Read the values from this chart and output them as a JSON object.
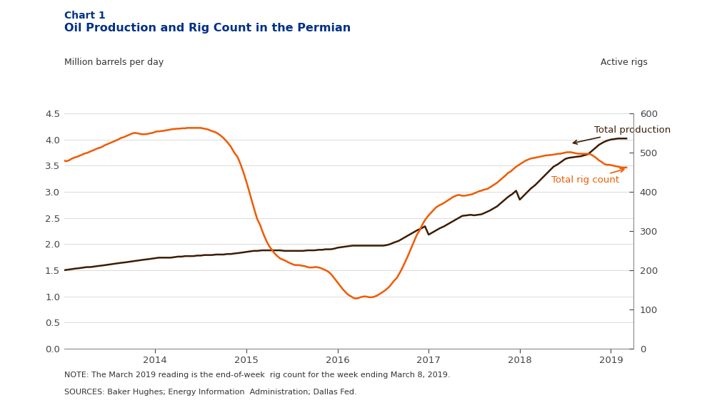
{
  "title_line1": "Chart 1",
  "title_line2": "Oil Production and Rig Count in the Permian",
  "ylabel_left": "Million barrels per day",
  "ylabel_right": "Active rigs",
  "note": "NOTE: The March 2019 reading is the end-of-week  rig count for the week ending March 8, 2019.",
  "sources": "SOURCES: Baker Hughes; Energy Information  Administration; Dallas Fed.",
  "ylim_left": [
    0.0,
    4.5
  ],
  "ylim_right": [
    0,
    600
  ],
  "yticks_left": [
    0.0,
    0.5,
    1.0,
    1.5,
    2.0,
    2.5,
    3.0,
    3.5,
    4.0,
    4.5
  ],
  "yticks_right": [
    0,
    100,
    200,
    300,
    400,
    500,
    600
  ],
  "production_color": "#3d1c02",
  "rig_color": "#f05a00",
  "title_color": "#003087",
  "background_color": "#ffffff",
  "annotation_production": "Total production",
  "annotation_rig": "Total rig count",
  "production_data": [
    [
      2013.0,
      1.5
    ],
    [
      2013.04,
      1.51
    ],
    [
      2013.08,
      1.52
    ],
    [
      2013.12,
      1.53
    ],
    [
      2013.17,
      1.54
    ],
    [
      2013.21,
      1.55
    ],
    [
      2013.25,
      1.56
    ],
    [
      2013.29,
      1.56
    ],
    [
      2013.33,
      1.57
    ],
    [
      2013.37,
      1.58
    ],
    [
      2013.42,
      1.59
    ],
    [
      2013.46,
      1.6
    ],
    [
      2013.5,
      1.61
    ],
    [
      2013.54,
      1.62
    ],
    [
      2013.58,
      1.63
    ],
    [
      2013.62,
      1.64
    ],
    [
      2013.67,
      1.65
    ],
    [
      2013.71,
      1.66
    ],
    [
      2013.75,
      1.67
    ],
    [
      2013.79,
      1.68
    ],
    [
      2013.83,
      1.69
    ],
    [
      2013.87,
      1.7
    ],
    [
      2013.92,
      1.71
    ],
    [
      2013.96,
      1.72
    ],
    [
      2014.0,
      1.73
    ],
    [
      2014.04,
      1.74
    ],
    [
      2014.08,
      1.74
    ],
    [
      2014.12,
      1.74
    ],
    [
      2014.17,
      1.74
    ],
    [
      2014.21,
      1.75
    ],
    [
      2014.25,
      1.76
    ],
    [
      2014.29,
      1.76
    ],
    [
      2014.33,
      1.77
    ],
    [
      2014.37,
      1.77
    ],
    [
      2014.42,
      1.77
    ],
    [
      2014.46,
      1.78
    ],
    [
      2014.5,
      1.78
    ],
    [
      2014.54,
      1.79
    ],
    [
      2014.58,
      1.79
    ],
    [
      2014.62,
      1.79
    ],
    [
      2014.67,
      1.8
    ],
    [
      2014.71,
      1.8
    ],
    [
      2014.75,
      1.8
    ],
    [
      2014.79,
      1.81
    ],
    [
      2014.83,
      1.81
    ],
    [
      2014.87,
      1.82
    ],
    [
      2014.92,
      1.83
    ],
    [
      2014.96,
      1.84
    ],
    [
      2015.0,
      1.85
    ],
    [
      2015.04,
      1.86
    ],
    [
      2015.08,
      1.87
    ],
    [
      2015.12,
      1.87
    ],
    [
      2015.17,
      1.88
    ],
    [
      2015.21,
      1.88
    ],
    [
      2015.25,
      1.88
    ],
    [
      2015.29,
      1.88
    ],
    [
      2015.33,
      1.88
    ],
    [
      2015.37,
      1.88
    ],
    [
      2015.42,
      1.87
    ],
    [
      2015.46,
      1.87
    ],
    [
      2015.5,
      1.87
    ],
    [
      2015.54,
      1.87
    ],
    [
      2015.58,
      1.87
    ],
    [
      2015.62,
      1.87
    ],
    [
      2015.67,
      1.88
    ],
    [
      2015.71,
      1.88
    ],
    [
      2015.75,
      1.88
    ],
    [
      2015.79,
      1.89
    ],
    [
      2015.83,
      1.89
    ],
    [
      2015.87,
      1.9
    ],
    [
      2015.92,
      1.9
    ],
    [
      2015.96,
      1.91
    ],
    [
      2016.0,
      1.93
    ],
    [
      2016.04,
      1.94
    ],
    [
      2016.08,
      1.95
    ],
    [
      2016.12,
      1.96
    ],
    [
      2016.17,
      1.97
    ],
    [
      2016.21,
      1.97
    ],
    [
      2016.25,
      1.97
    ],
    [
      2016.29,
      1.97
    ],
    [
      2016.33,
      1.97
    ],
    [
      2016.37,
      1.97
    ],
    [
      2016.42,
      1.97
    ],
    [
      2016.46,
      1.97
    ],
    [
      2016.5,
      1.97
    ],
    [
      2016.54,
      1.98
    ],
    [
      2016.58,
      2.0
    ],
    [
      2016.62,
      2.03
    ],
    [
      2016.67,
      2.06
    ],
    [
      2016.71,
      2.1
    ],
    [
      2016.75,
      2.14
    ],
    [
      2016.79,
      2.18
    ],
    [
      2016.83,
      2.22
    ],
    [
      2016.87,
      2.26
    ],
    [
      2016.92,
      2.3
    ],
    [
      2016.96,
      2.34
    ],
    [
      2017.0,
      2.18
    ],
    [
      2017.04,
      2.22
    ],
    [
      2017.08,
      2.26
    ],
    [
      2017.12,
      2.3
    ],
    [
      2017.17,
      2.34
    ],
    [
      2017.21,
      2.38
    ],
    [
      2017.25,
      2.42
    ],
    [
      2017.29,
      2.46
    ],
    [
      2017.33,
      2.5
    ],
    [
      2017.37,
      2.54
    ],
    [
      2017.42,
      2.55
    ],
    [
      2017.46,
      2.56
    ],
    [
      2017.5,
      2.55
    ],
    [
      2017.54,
      2.56
    ],
    [
      2017.58,
      2.57
    ],
    [
      2017.62,
      2.6
    ],
    [
      2017.67,
      2.64
    ],
    [
      2017.71,
      2.68
    ],
    [
      2017.75,
      2.72
    ],
    [
      2017.79,
      2.78
    ],
    [
      2017.83,
      2.84
    ],
    [
      2017.87,
      2.9
    ],
    [
      2017.92,
      2.96
    ],
    [
      2017.96,
      3.02
    ],
    [
      2018.0,
      2.85
    ],
    [
      2018.04,
      2.92
    ],
    [
      2018.08,
      2.99
    ],
    [
      2018.12,
      3.06
    ],
    [
      2018.17,
      3.13
    ],
    [
      2018.21,
      3.2
    ],
    [
      2018.25,
      3.27
    ],
    [
      2018.29,
      3.34
    ],
    [
      2018.33,
      3.41
    ],
    [
      2018.37,
      3.48
    ],
    [
      2018.42,
      3.53
    ],
    [
      2018.46,
      3.58
    ],
    [
      2018.5,
      3.63
    ],
    [
      2018.54,
      3.65
    ],
    [
      2018.58,
      3.66
    ],
    [
      2018.62,
      3.67
    ],
    [
      2018.67,
      3.68
    ],
    [
      2018.71,
      3.7
    ],
    [
      2018.75,
      3.72
    ],
    [
      2018.79,
      3.78
    ],
    [
      2018.83,
      3.84
    ],
    [
      2018.87,
      3.9
    ],
    [
      2018.92,
      3.95
    ],
    [
      2018.96,
      3.98
    ],
    [
      2019.0,
      4.0
    ],
    [
      2019.04,
      4.01
    ],
    [
      2019.08,
      4.02
    ],
    [
      2019.12,
      4.02
    ],
    [
      2019.17,
      4.02
    ]
  ],
  "rig_data": [
    [
      2013.0,
      480
    ],
    [
      2013.02,
      478
    ],
    [
      2013.04,
      479
    ],
    [
      2013.06,
      481
    ],
    [
      2013.08,
      484
    ],
    [
      2013.1,
      486
    ],
    [
      2013.12,
      488
    ],
    [
      2013.15,
      490
    ],
    [
      2013.17,
      492
    ],
    [
      2013.19,
      494
    ],
    [
      2013.21,
      496
    ],
    [
      2013.23,
      498
    ],
    [
      2013.25,
      499
    ],
    [
      2013.27,
      501
    ],
    [
      2013.29,
      503
    ],
    [
      2013.31,
      505
    ],
    [
      2013.33,
      507
    ],
    [
      2013.35,
      509
    ],
    [
      2013.37,
      511
    ],
    [
      2013.4,
      513
    ],
    [
      2013.42,
      515
    ],
    [
      2013.44,
      518
    ],
    [
      2013.46,
      520
    ],
    [
      2013.48,
      522
    ],
    [
      2013.5,
      524
    ],
    [
      2013.52,
      526
    ],
    [
      2013.54,
      528
    ],
    [
      2013.56,
      530
    ],
    [
      2013.58,
      532
    ],
    [
      2013.6,
      534
    ],
    [
      2013.62,
      537
    ],
    [
      2013.65,
      539
    ],
    [
      2013.67,
      541
    ],
    [
      2013.69,
      543
    ],
    [
      2013.71,
      545
    ],
    [
      2013.73,
      547
    ],
    [
      2013.75,
      549
    ],
    [
      2013.77,
      550
    ],
    [
      2013.79,
      550
    ],
    [
      2013.81,
      549
    ],
    [
      2013.83,
      548
    ],
    [
      2013.85,
      547
    ],
    [
      2013.87,
      547
    ],
    [
      2013.9,
      547
    ],
    [
      2013.92,
      548
    ],
    [
      2013.94,
      549
    ],
    [
      2013.96,
      550
    ],
    [
      2013.98,
      551
    ],
    [
      2014.0,
      553
    ],
    [
      2014.02,
      554
    ],
    [
      2014.04,
      554
    ],
    [
      2014.06,
      555
    ],
    [
      2014.08,
      555
    ],
    [
      2014.1,
      556
    ],
    [
      2014.12,
      557
    ],
    [
      2014.15,
      558
    ],
    [
      2014.17,
      559
    ],
    [
      2014.19,
      560
    ],
    [
      2014.21,
      560
    ],
    [
      2014.23,
      561
    ],
    [
      2014.25,
      561
    ],
    [
      2014.27,
      561
    ],
    [
      2014.29,
      562
    ],
    [
      2014.31,
      562
    ],
    [
      2014.33,
      562
    ],
    [
      2014.35,
      563
    ],
    [
      2014.37,
      563
    ],
    [
      2014.4,
      563
    ],
    [
      2014.42,
      563
    ],
    [
      2014.44,
      563
    ],
    [
      2014.46,
      563
    ],
    [
      2014.48,
      563
    ],
    [
      2014.5,
      563
    ],
    [
      2014.52,
      562
    ],
    [
      2014.54,
      561
    ],
    [
      2014.56,
      560
    ],
    [
      2014.58,
      559
    ],
    [
      2014.6,
      557
    ],
    [
      2014.62,
      555
    ],
    [
      2014.65,
      553
    ],
    [
      2014.67,
      551
    ],
    [
      2014.69,
      548
    ],
    [
      2014.71,
      545
    ],
    [
      2014.73,
      541
    ],
    [
      2014.75,
      537
    ],
    [
      2014.77,
      532
    ],
    [
      2014.79,
      527
    ],
    [
      2014.81,
      521
    ],
    [
      2014.83,
      515
    ],
    [
      2014.85,
      507
    ],
    [
      2014.87,
      499
    ],
    [
      2014.9,
      490
    ],
    [
      2014.92,
      480
    ],
    [
      2014.94,
      468
    ],
    [
      2014.96,
      455
    ],
    [
      2014.98,
      441
    ],
    [
      2015.0,
      426
    ],
    [
      2015.02,
      410
    ],
    [
      2015.04,
      394
    ],
    [
      2015.06,
      377
    ],
    [
      2015.08,
      361
    ],
    [
      2015.1,
      345
    ],
    [
      2015.12,
      330
    ],
    [
      2015.15,
      316
    ],
    [
      2015.17,
      303
    ],
    [
      2015.19,
      291
    ],
    [
      2015.21,
      280
    ],
    [
      2015.23,
      270
    ],
    [
      2015.25,
      262
    ],
    [
      2015.27,
      255
    ],
    [
      2015.29,
      249
    ],
    [
      2015.31,
      243
    ],
    [
      2015.33,
      238
    ],
    [
      2015.35,
      234
    ],
    [
      2015.37,
      230
    ],
    [
      2015.4,
      227
    ],
    [
      2015.42,
      225
    ],
    [
      2015.44,
      223
    ],
    [
      2015.46,
      220
    ],
    [
      2015.48,
      218
    ],
    [
      2015.5,
      216
    ],
    [
      2015.52,
      214
    ],
    [
      2015.54,
      213
    ],
    [
      2015.56,
      213
    ],
    [
      2015.58,
      213
    ],
    [
      2015.6,
      212
    ],
    [
      2015.62,
      211
    ],
    [
      2015.65,
      210
    ],
    [
      2015.67,
      208
    ],
    [
      2015.69,
      207
    ],
    [
      2015.71,
      207
    ],
    [
      2015.73,
      207
    ],
    [
      2015.75,
      208
    ],
    [
      2015.77,
      208
    ],
    [
      2015.79,
      207
    ],
    [
      2015.81,
      206
    ],
    [
      2015.83,
      204
    ],
    [
      2015.85,
      202
    ],
    [
      2015.87,
      200
    ],
    [
      2015.9,
      196
    ],
    [
      2015.92,
      192
    ],
    [
      2015.94,
      187
    ],
    [
      2015.96,
      181
    ],
    [
      2015.98,
      175
    ],
    [
      2016.0,
      169
    ],
    [
      2016.02,
      163
    ],
    [
      2016.04,
      157
    ],
    [
      2016.06,
      151
    ],
    [
      2016.08,
      146
    ],
    [
      2016.1,
      141
    ],
    [
      2016.12,
      137
    ],
    [
      2016.15,
      133
    ],
    [
      2016.17,
      130
    ],
    [
      2016.19,
      128
    ],
    [
      2016.21,
      128
    ],
    [
      2016.23,
      129
    ],
    [
      2016.25,
      131
    ],
    [
      2016.27,
      132
    ],
    [
      2016.29,
      133
    ],
    [
      2016.31,
      133
    ],
    [
      2016.33,
      132
    ],
    [
      2016.35,
      131
    ],
    [
      2016.37,
      131
    ],
    [
      2016.4,
      132
    ],
    [
      2016.42,
      134
    ],
    [
      2016.44,
      136
    ],
    [
      2016.46,
      139
    ],
    [
      2016.48,
      142
    ],
    [
      2016.5,
      145
    ],
    [
      2016.52,
      148
    ],
    [
      2016.54,
      152
    ],
    [
      2016.56,
      156
    ],
    [
      2016.58,
      161
    ],
    [
      2016.6,
      167
    ],
    [
      2016.62,
      173
    ],
    [
      2016.65,
      180
    ],
    [
      2016.67,
      188
    ],
    [
      2016.69,
      196
    ],
    [
      2016.71,
      205
    ],
    [
      2016.73,
      215
    ],
    [
      2016.75,
      225
    ],
    [
      2016.77,
      235
    ],
    [
      2016.79,
      246
    ],
    [
      2016.81,
      257
    ],
    [
      2016.83,
      268
    ],
    [
      2016.85,
      279
    ],
    [
      2016.87,
      290
    ],
    [
      2016.9,
      301
    ],
    [
      2016.92,
      311
    ],
    [
      2016.94,
      320
    ],
    [
      2016.96,
      328
    ],
    [
      2016.98,
      334
    ],
    [
      2017.0,
      340
    ],
    [
      2017.02,
      345
    ],
    [
      2017.04,
      350
    ],
    [
      2017.06,
      355
    ],
    [
      2017.08,
      360
    ],
    [
      2017.1,
      363
    ],
    [
      2017.12,
      366
    ],
    [
      2017.15,
      369
    ],
    [
      2017.17,
      372
    ],
    [
      2017.19,
      375
    ],
    [
      2017.21,
      378
    ],
    [
      2017.23,
      381
    ],
    [
      2017.25,
      384
    ],
    [
      2017.27,
      387
    ],
    [
      2017.29,
      389
    ],
    [
      2017.31,
      391
    ],
    [
      2017.33,
      392
    ],
    [
      2017.35,
      391
    ],
    [
      2017.37,
      390
    ],
    [
      2017.4,
      390
    ],
    [
      2017.42,
      391
    ],
    [
      2017.44,
      392
    ],
    [
      2017.46,
      393
    ],
    [
      2017.48,
      394
    ],
    [
      2017.5,
      396
    ],
    [
      2017.52,
      398
    ],
    [
      2017.54,
      400
    ],
    [
      2017.56,
      402
    ],
    [
      2017.58,
      403
    ],
    [
      2017.6,
      405
    ],
    [
      2017.62,
      406
    ],
    [
      2017.65,
      408
    ],
    [
      2017.67,
      411
    ],
    [
      2017.69,
      414
    ],
    [
      2017.71,
      417
    ],
    [
      2017.73,
      420
    ],
    [
      2017.75,
      423
    ],
    [
      2017.77,
      427
    ],
    [
      2017.79,
      431
    ],
    [
      2017.81,
      435
    ],
    [
      2017.83,
      439
    ],
    [
      2017.85,
      443
    ],
    [
      2017.87,
      448
    ],
    [
      2017.9,
      452
    ],
    [
      2017.92,
      456
    ],
    [
      2017.94,
      460
    ],
    [
      2017.96,
      464
    ],
    [
      2017.98,
      467
    ],
    [
      2018.0,
      470
    ],
    [
      2018.02,
      473
    ],
    [
      2018.04,
      476
    ],
    [
      2018.06,
      479
    ],
    [
      2018.08,
      481
    ],
    [
      2018.1,
      483
    ],
    [
      2018.12,
      485
    ],
    [
      2018.15,
      486
    ],
    [
      2018.17,
      487
    ],
    [
      2018.19,
      488
    ],
    [
      2018.21,
      489
    ],
    [
      2018.23,
      490
    ],
    [
      2018.25,
      491
    ],
    [
      2018.27,
      492
    ],
    [
      2018.29,
      493
    ],
    [
      2018.31,
      493
    ],
    [
      2018.33,
      494
    ],
    [
      2018.35,
      494
    ],
    [
      2018.37,
      495
    ],
    [
      2018.4,
      496
    ],
    [
      2018.42,
      497
    ],
    [
      2018.44,
      497
    ],
    [
      2018.46,
      498
    ],
    [
      2018.48,
      499
    ],
    [
      2018.5,
      500
    ],
    [
      2018.52,
      501
    ],
    [
      2018.54,
      501
    ],
    [
      2018.56,
      501
    ],
    [
      2018.58,
      500
    ],
    [
      2018.6,
      499
    ],
    [
      2018.62,
      498
    ],
    [
      2018.65,
      497
    ],
    [
      2018.67,
      497
    ],
    [
      2018.69,
      497
    ],
    [
      2018.71,
      497
    ],
    [
      2018.73,
      497
    ],
    [
      2018.75,
      497
    ],
    [
      2018.77,
      496
    ],
    [
      2018.79,
      494
    ],
    [
      2018.81,
      491
    ],
    [
      2018.83,
      488
    ],
    [
      2018.85,
      484
    ],
    [
      2018.87,
      480
    ],
    [
      2018.9,
      476
    ],
    [
      2018.92,
      472
    ],
    [
      2018.94,
      470
    ],
    [
      2018.96,
      469
    ],
    [
      2018.98,
      469
    ],
    [
      2019.0,
      468
    ],
    [
      2019.02,
      467
    ],
    [
      2019.04,
      466
    ],
    [
      2019.06,
      465
    ],
    [
      2019.08,
      464
    ],
    [
      2019.1,
      463
    ],
    [
      2019.12,
      462
    ],
    [
      2019.15,
      462
    ],
    [
      2019.17,
      462
    ]
  ],
  "xtick_positions": [
    2014,
    2015,
    2016,
    2017,
    2018,
    2019
  ],
  "xtick_labels": [
    "2014",
    "2015",
    "2016",
    "2017",
    "2018",
    "2019"
  ],
  "xmin": 2013.0,
  "xmax": 2019.25
}
